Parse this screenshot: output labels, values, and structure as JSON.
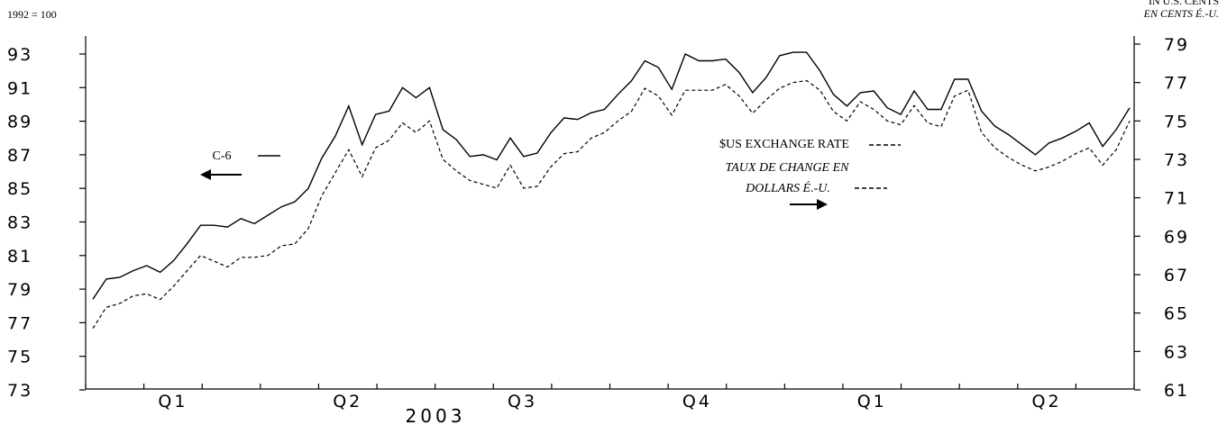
{
  "chart_data": {
    "type": "line",
    "left_unit_label": "1992 = 100",
    "right_unit_label_en": "IN U.S. CENTS",
    "right_unit_label_fr": "EN CENTS É.-U.",
    "y_left": {
      "range": [
        73,
        94
      ],
      "ticks": [
        "93",
        "91",
        "89",
        "87",
        "85",
        "83",
        "81",
        "79",
        "77",
        "75",
        "73"
      ]
    },
    "y_right": {
      "range": [
        61,
        80
      ],
      "ticks": [
        "79",
        "77",
        "75",
        "73",
        "71",
        "69",
        "67",
        "65",
        "63",
        "61"
      ]
    },
    "x_quarter_labels": [
      "Q1",
      "Q2",
      "Q3",
      "Q4",
      "Q1",
      "Q2"
    ],
    "x_year_label": "2003",
    "grid": false,
    "legend": {
      "c6_label": "C-6",
      "exchange_label_en": "$US EXCHANGE RATE",
      "exchange_label_fr_1": "TAUX DE CHANGE EN",
      "exchange_label_fr_2": "DOLLARS É.-U."
    },
    "series": [
      {
        "name": "C-6",
        "axis": "left",
        "style": "solid",
        "values": [
          78.4,
          79.6,
          79.7,
          80.1,
          80.4,
          80.0,
          80.7,
          81.7,
          82.8,
          82.8,
          82.7,
          83.2,
          82.9,
          83.4,
          83.9,
          84.2,
          85.0,
          86.8,
          88.1,
          89.9,
          87.6,
          89.4,
          89.6,
          91.0,
          90.4,
          91.0,
          88.5,
          87.9,
          86.9,
          87.0,
          86.7,
          88.0,
          86.9,
          87.1,
          88.3,
          89.2,
          89.1,
          89.5,
          89.7,
          90.6,
          91.4,
          92.6,
          92.2,
          90.9,
          93.0,
          92.6,
          92.6,
          92.7,
          91.9,
          90.7,
          91.6,
          92.9,
          93.1,
          93.1,
          92.0,
          90.6,
          89.9,
          90.7,
          90.8,
          89.8,
          89.4,
          90.8,
          89.7,
          89.7,
          91.5,
          91.5,
          89.6,
          88.7,
          88.2,
          87.6,
          87.0,
          87.7,
          88.0,
          88.4,
          88.9,
          87.5,
          88.5,
          89.8
        ]
      },
      {
        "name": "$US EXCHANGE RATE",
        "axis": "right",
        "style": "dashed",
        "values": [
          64.2,
          65.3,
          65.5,
          65.9,
          66.0,
          65.7,
          66.4,
          67.2,
          68.0,
          67.7,
          67.4,
          67.9,
          67.9,
          68.0,
          68.5,
          68.6,
          69.4,
          71.1,
          72.3,
          73.5,
          72.1,
          73.6,
          74.0,
          74.9,
          74.4,
          75.0,
          73.0,
          72.4,
          71.9,
          71.7,
          71.5,
          72.7,
          71.5,
          71.6,
          72.6,
          73.3,
          73.4,
          74.1,
          74.4,
          75.0,
          75.5,
          76.7,
          76.3,
          75.3,
          76.6,
          76.6,
          76.6,
          76.9,
          76.3,
          75.4,
          76.1,
          76.7,
          77.0,
          77.1,
          76.6,
          75.5,
          75.0,
          76.0,
          75.6,
          75.0,
          74.8,
          75.8,
          74.9,
          74.7,
          76.3,
          76.6,
          74.4,
          73.6,
          73.1,
          72.7,
          72.4,
          72.6,
          72.9,
          73.3,
          73.6,
          72.7,
          73.5,
          75.0
        ]
      }
    ]
  }
}
